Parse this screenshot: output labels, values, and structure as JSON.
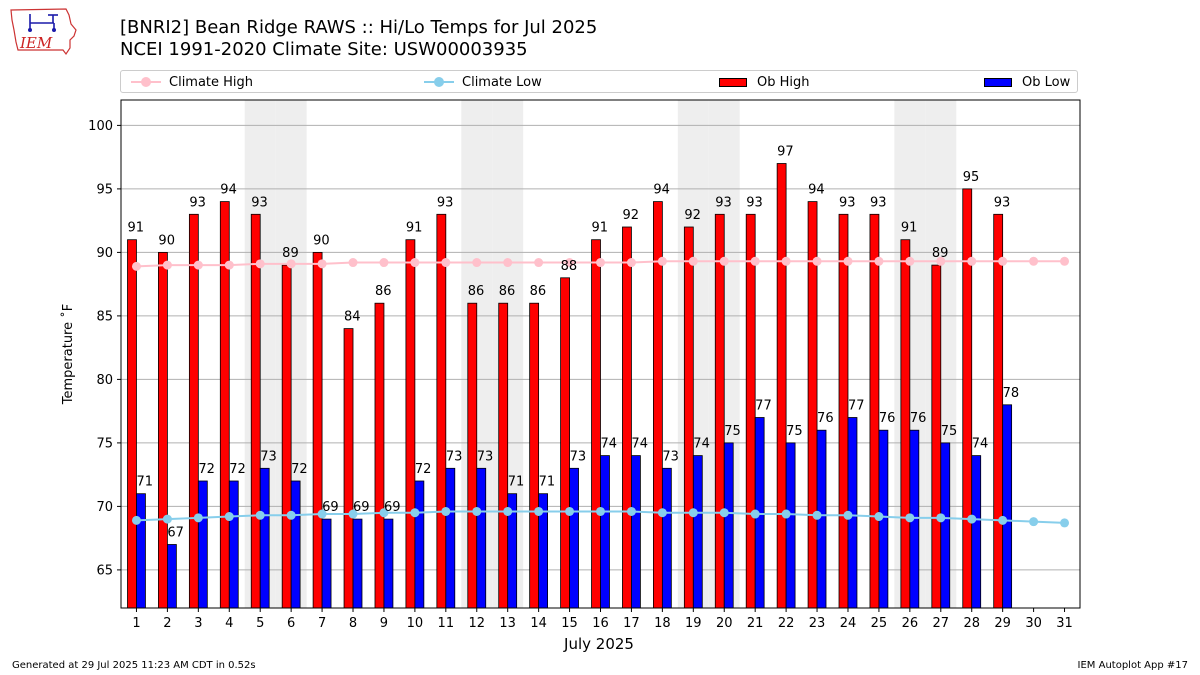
{
  "header": {
    "title_line1": "[BNRI2] Bean Ridge RAWS :: Hi/Lo Temps for Jul 2025",
    "title_line2": "NCEI 1991-2020 Climate Site: USW00003935",
    "logo_text": "IEM"
  },
  "legend": {
    "climate_high": "Climate High",
    "climate_low": "Climate Low",
    "ob_high": "Ob High",
    "ob_low": "Ob Low"
  },
  "colors": {
    "climate_high": "#FFC0CB",
    "climate_low": "#87CEEB",
    "ob_high": "#FF0000",
    "ob_low": "#0000FF",
    "weekend_shade": "#EEEEEE",
    "grid": "#B0B0B0"
  },
  "footer": {
    "left": "Generated at 29 Jul 2025 11:23 AM CDT in 0.52s",
    "right": "IEM Autoplot App #17"
  },
  "chart_data": {
    "type": "bar",
    "xlabel": "July 2025",
    "ylabel": "Temperature ˚F",
    "ylim": [
      62,
      102
    ],
    "yticks": [
      65,
      70,
      75,
      80,
      85,
      90,
      95,
      100
    ],
    "grid": "horizontal",
    "legend_position": "top",
    "categories": [
      "1",
      "2",
      "3",
      "4",
      "5",
      "6",
      "7",
      "8",
      "9",
      "10",
      "11",
      "12",
      "13",
      "14",
      "15",
      "16",
      "17",
      "18",
      "19",
      "20",
      "21",
      "22",
      "23",
      "24",
      "25",
      "26",
      "27",
      "28",
      "29",
      "30",
      "31"
    ],
    "shaded_days": [
      5,
      6,
      12,
      13,
      19,
      20,
      26,
      27
    ],
    "series": [
      {
        "name": "Ob High",
        "kind": "bar",
        "values": [
          91,
          90,
          93,
          94,
          93,
          89,
          90,
          84,
          86,
          91,
          93,
          86,
          86,
          86,
          88,
          91,
          92,
          94,
          92,
          93,
          93,
          97,
          94,
          93,
          93,
          91,
          89,
          95,
          93,
          null,
          null
        ]
      },
      {
        "name": "Ob Low",
        "kind": "bar",
        "values": [
          71,
          67,
          72,
          72,
          73,
          72,
          69,
          69,
          69,
          72,
          73,
          73,
          71,
          71,
          73,
          74,
          74,
          73,
          74,
          75,
          77,
          75,
          76,
          77,
          76,
          76,
          75,
          74,
          78,
          null,
          null
        ]
      },
      {
        "name": "Climate High",
        "kind": "line",
        "values": [
          88.9,
          89.0,
          89.0,
          89.0,
          89.1,
          89.1,
          89.1,
          89.2,
          89.2,
          89.2,
          89.2,
          89.2,
          89.2,
          89.2,
          89.2,
          89.2,
          89.2,
          89.3,
          89.3,
          89.3,
          89.3,
          89.3,
          89.3,
          89.3,
          89.3,
          89.3,
          89.3,
          89.3,
          89.3,
          89.3,
          89.3
        ]
      },
      {
        "name": "Climate Low",
        "kind": "line",
        "values": [
          68.9,
          69.0,
          69.1,
          69.2,
          69.3,
          69.3,
          69.4,
          69.4,
          69.5,
          69.5,
          69.6,
          69.6,
          69.6,
          69.6,
          69.6,
          69.6,
          69.6,
          69.5,
          69.5,
          69.5,
          69.4,
          69.4,
          69.3,
          69.3,
          69.2,
          69.1,
          69.1,
          69.0,
          68.9,
          68.8,
          68.7
        ]
      }
    ]
  }
}
